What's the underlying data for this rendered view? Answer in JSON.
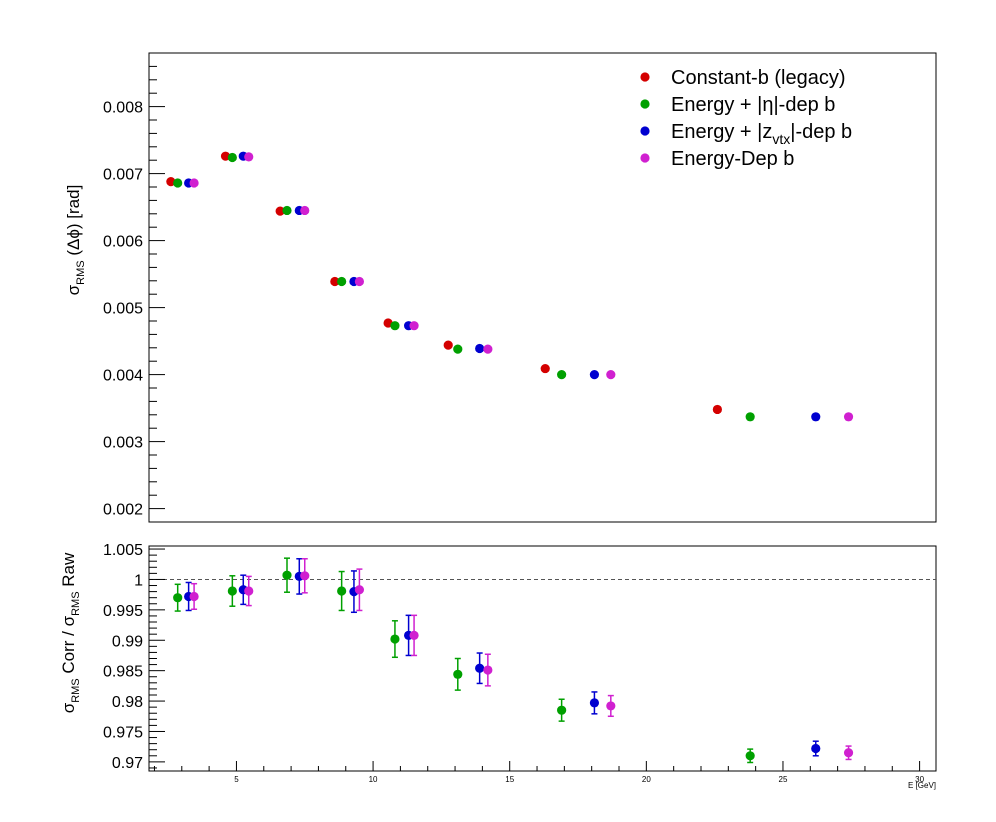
{
  "chart_data": [
    {
      "type": "scatter",
      "panel": "top",
      "ylabel_main": "σ",
      "ylabel_sub": "RMS",
      "ylabel_rest": " (Δϕ) [rad]",
      "ylim": [
        0.0018,
        0.0088
      ],
      "xlim": [
        1.8,
        30.6
      ],
      "yticks": [
        0.002,
        0.003,
        0.004,
        0.005,
        0.006,
        0.007,
        0.008
      ],
      "ytick_labels": [
        "0.002",
        "0.003",
        "0.004",
        "0.005",
        "0.006",
        "0.007",
        "0.008"
      ],
      "legend_position": "top-right",
      "series": [
        {
          "name": "Constant-b (legacy)",
          "color": "#d40000",
          "x": [
            2.6,
            4.6,
            6.6,
            8.6,
            10.55,
            12.75,
            16.3,
            22.6
          ],
          "y": [
            0.00688,
            0.00726,
            0.00644,
            0.00539,
            0.00477,
            0.00444,
            0.00409,
            0.00348
          ]
        },
        {
          "name": "Energy + |η|-dep b",
          "color": "#00a000",
          "x": [
            2.85,
            4.85,
            6.85,
            8.85,
            10.8,
            13.1,
            16.9,
            23.8
          ],
          "y": [
            0.00686,
            0.00724,
            0.00645,
            0.00539,
            0.00473,
            0.00438,
            0.004,
            0.00337
          ]
        },
        {
          "name": "Energy + |z_vtx|-dep b",
          "color": "#0000d0",
          "x": [
            3.25,
            5.25,
            7.3,
            9.3,
            11.3,
            13.9,
            18.1,
            26.2
          ],
          "y": [
            0.00686,
            0.00726,
            0.00645,
            0.00539,
            0.00473,
            0.00439,
            0.004,
            0.00337
          ]
        },
        {
          "name": "Energy-Dep b",
          "color": "#d020d0",
          "x": [
            3.45,
            5.45,
            7.5,
            9.5,
            11.5,
            14.2,
            18.7,
            27.4
          ],
          "y": [
            0.00686,
            0.00725,
            0.00645,
            0.00539,
            0.00473,
            0.00438,
            0.004,
            0.00337
          ]
        }
      ]
    },
    {
      "type": "scatter",
      "panel": "bottom",
      "ylabel_parts": [
        "σ",
        "RMS",
        " Corr / σ",
        "RMS",
        " Raw"
      ],
      "xlabel": "E  [GeV]",
      "xlim": [
        1.8,
        30.6
      ],
      "ylim": [
        0.9685,
        1.0055
      ],
      "xticks": [
        5,
        10,
        15,
        20,
        25,
        30
      ],
      "xtick_labels": [
        "5",
        "10",
        "15",
        "20",
        "25",
        "30"
      ],
      "yticks": [
        0.97,
        0.975,
        0.98,
        0.985,
        0.99,
        0.995,
        1.0,
        1.005
      ],
      "ytick_labels": [
        "0.97",
        "0.975",
        "0.98",
        "0.985",
        "0.99",
        "0.995",
        "1",
        "1.005"
      ],
      "reference_line": 1.0,
      "series": [
        {
          "color": "#00a000",
          "x": [
            2.85,
            4.85,
            6.85,
            8.85,
            10.8,
            13.1,
            16.9,
            23.8
          ],
          "y": [
            0.997,
            0.9981,
            1.0007,
            0.9981,
            0.9902,
            0.9844,
            0.9785,
            0.971
          ],
          "err": [
            0.0022,
            0.0025,
            0.0028,
            0.0032,
            0.003,
            0.0026,
            0.0018,
            0.0011
          ]
        },
        {
          "color": "#0000d0",
          "x": [
            3.25,
            5.25,
            7.3,
            9.3,
            11.3,
            13.9,
            18.1,
            26.2
          ],
          "y": [
            0.9972,
            0.9983,
            1.0005,
            0.998,
            0.9908,
            0.9854,
            0.9797,
            0.9722
          ],
          "err": [
            0.0023,
            0.0024,
            0.0029,
            0.0034,
            0.0033,
            0.0025,
            0.0018,
            0.0012
          ]
        },
        {
          "color": "#d020d0",
          "x": [
            3.45,
            5.45,
            7.5,
            9.5,
            11.5,
            14.2,
            18.7,
            27.4
          ],
          "y": [
            0.9972,
            0.9981,
            1.0006,
            0.9983,
            0.9908,
            0.9851,
            0.9792,
            0.9715
          ],
          "err": [
            0.0021,
            0.0024,
            0.0028,
            0.0034,
            0.0033,
            0.0026,
            0.0017,
            0.0011
          ]
        }
      ]
    }
  ]
}
